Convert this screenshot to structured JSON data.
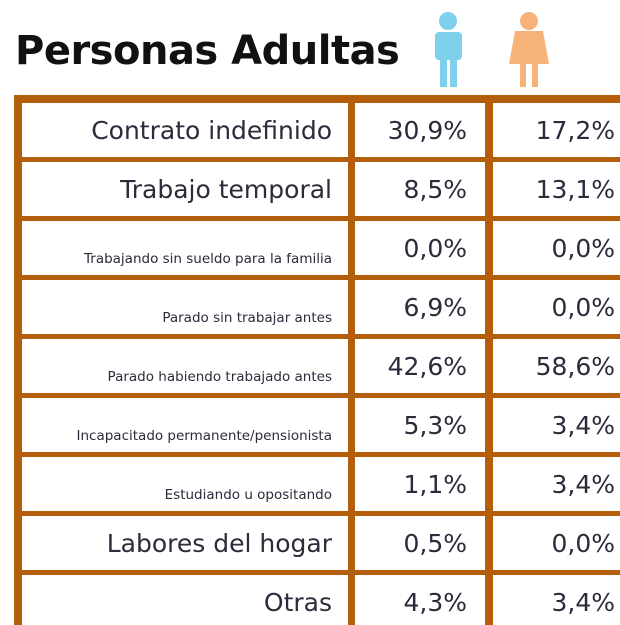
{
  "header": {
    "title": "Personas Adultas"
  },
  "table": {
    "rows": [
      [
        "Contrato indefinido",
        "30,9%",
        "17,2%"
      ],
      [
        "Trabajo temporal",
        "8,5%",
        "13,1%"
      ],
      [
        "Trabajando sin sueldo para la familia",
        "0,0%",
        "0,0%"
      ],
      [
        "Parado sin trabajar antes",
        "6,9%",
        "0,0%"
      ],
      [
        "Parado habiendo trabajado antes",
        "42,6%",
        "58,6%"
      ],
      [
        "Incapacitado permanente/pensionista",
        "5,3%",
        "3,4%"
      ],
      [
        "Estudiando u opositando",
        "1,1%",
        "3,4%"
      ],
      [
        "Labores del hogar",
        "0,5%",
        "0,0%"
      ],
      [
        "Otras",
        "4,3%",
        "3,4%"
      ]
    ]
  }
}
